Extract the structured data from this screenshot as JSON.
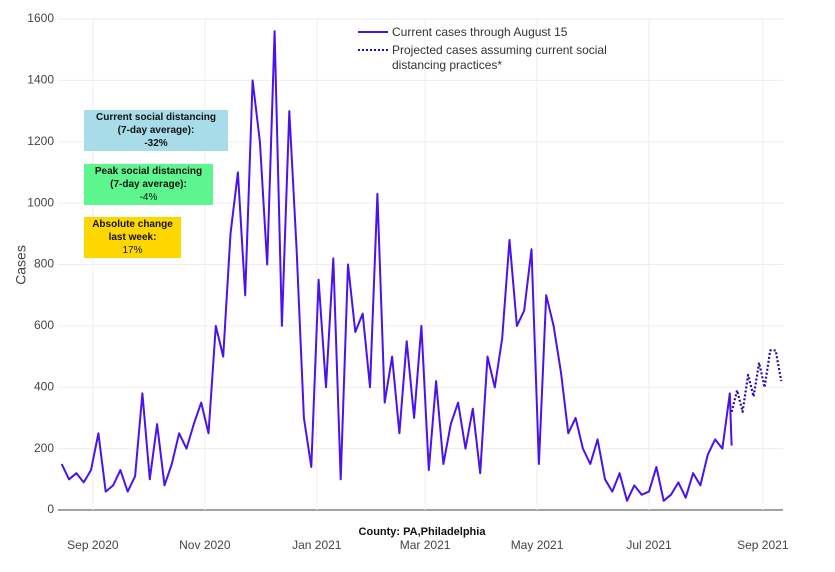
{
  "chart_data": {
    "type": "line",
    "y_label": "Cases",
    "x_label": "County: PA,Philadelphia",
    "xlim": [
      "2020-08-13",
      "2021-09-12"
    ],
    "xticks": [
      {
        "value": "2020-09-01",
        "label": "Sep 2020"
      },
      {
        "value": "2020-11-01",
        "label": "Nov 2020"
      },
      {
        "value": "2021-01-01",
        "label": "Jan 2021"
      },
      {
        "value": "2021-03-01",
        "label": "Mar 2021"
      },
      {
        "value": "2021-05-01",
        "label": "May 2021"
      },
      {
        "value": "2021-07-01",
        "label": "Jul 2021"
      },
      {
        "value": "2021-09-01",
        "label": "Sep 2021"
      }
    ],
    "ylim": [
      0,
      1600
    ],
    "yticks": [
      0,
      200,
      400,
      600,
      800,
      1000,
      1200,
      1400,
      1600
    ],
    "grid": true,
    "series": [
      {
        "name": "Current cases through August 15",
        "color": "#4a12f0",
        "dash": false,
        "x": [
          "2020-08-15",
          "2020-08-19",
          "2020-08-23",
          "2020-08-27",
          "2020-08-31",
          "2020-09-04",
          "2020-09-08",
          "2020-09-12",
          "2020-09-16",
          "2020-09-20",
          "2020-09-24",
          "2020-09-28",
          "2020-10-02",
          "2020-10-06",
          "2020-10-10",
          "2020-10-14",
          "2020-10-18",
          "2020-10-22",
          "2020-10-26",
          "2020-10-30",
          "2020-11-03",
          "2020-11-07",
          "2020-11-11",
          "2020-11-15",
          "2020-11-19",
          "2020-11-23",
          "2020-11-27",
          "2020-12-01",
          "2020-12-05",
          "2020-12-09",
          "2020-12-13",
          "2020-12-17",
          "2020-12-21",
          "2020-12-25",
          "2020-12-29",
          "2021-01-02",
          "2021-01-06",
          "2021-01-10",
          "2021-01-14",
          "2021-01-18",
          "2021-01-22",
          "2021-01-26",
          "2021-01-30",
          "2021-02-03",
          "2021-02-07",
          "2021-02-11",
          "2021-02-15",
          "2021-02-19",
          "2021-02-23",
          "2021-02-27",
          "2021-03-03",
          "2021-03-07",
          "2021-03-11",
          "2021-03-15",
          "2021-03-19",
          "2021-03-23",
          "2021-03-27",
          "2021-03-31",
          "2021-04-04",
          "2021-04-08",
          "2021-04-12",
          "2021-04-16",
          "2021-04-20",
          "2021-04-24",
          "2021-04-28",
          "2021-05-02",
          "2021-05-06",
          "2021-05-10",
          "2021-05-14",
          "2021-05-18",
          "2021-05-22",
          "2021-05-26",
          "2021-05-30",
          "2021-06-03",
          "2021-06-07",
          "2021-06-11",
          "2021-06-15",
          "2021-06-19",
          "2021-06-23",
          "2021-06-27",
          "2021-07-01",
          "2021-07-05",
          "2021-07-09",
          "2021-07-13",
          "2021-07-17",
          "2021-07-21",
          "2021-07-25",
          "2021-07-29",
          "2021-08-02",
          "2021-08-06",
          "2021-08-10",
          "2021-08-14",
          "2021-08-15"
        ],
        "values": [
          150,
          100,
          120,
          90,
          130,
          250,
          60,
          80,
          130,
          60,
          110,
          380,
          100,
          280,
          80,
          150,
          250,
          200,
          280,
          350,
          250,
          600,
          500,
          900,
          1100,
          700,
          1400,
          1200,
          800,
          1560,
          600,
          1300,
          850,
          300,
          140,
          750,
          400,
          820,
          100,
          800,
          580,
          640,
          400,
          1030,
          350,
          500,
          250,
          550,
          300,
          600,
          130,
          420,
          150,
          280,
          350,
          200,
          330,
          120,
          500,
          400,
          560,
          880,
          600,
          650,
          850,
          150,
          700,
          600,
          450,
          250,
          300,
          200,
          150,
          230,
          100,
          60,
          120,
          30,
          80,
          50,
          60,
          140,
          30,
          50,
          90,
          40,
          120,
          80,
          180,
          230,
          200,
          380,
          210
        ]
      },
      {
        "name": "Projected cases assuming current social distancing practices*",
        "color": "#2a0aa6",
        "dash": true,
        "x": [
          "2021-08-15",
          "2021-08-18",
          "2021-08-21",
          "2021-08-24",
          "2021-08-27",
          "2021-08-30",
          "2021-09-02",
          "2021-09-05",
          "2021-09-08",
          "2021-09-11"
        ],
        "values": [
          320,
          390,
          320,
          440,
          370,
          480,
          400,
          520,
          520,
          420
        ]
      }
    ],
    "annotations": [
      {
        "lines": [
          "Current social distancing",
          "(7-day average):",
          "-32%"
        ],
        "color": "#a8dce9"
      },
      {
        "lines": [
          "Peak social distancing",
          "(7-day average):",
          "-4%"
        ],
        "color": "#5cf58e"
      },
      {
        "lines": [
          "Absolute change",
          "last week:",
          "17%"
        ],
        "color": "#ffd700"
      }
    ]
  }
}
